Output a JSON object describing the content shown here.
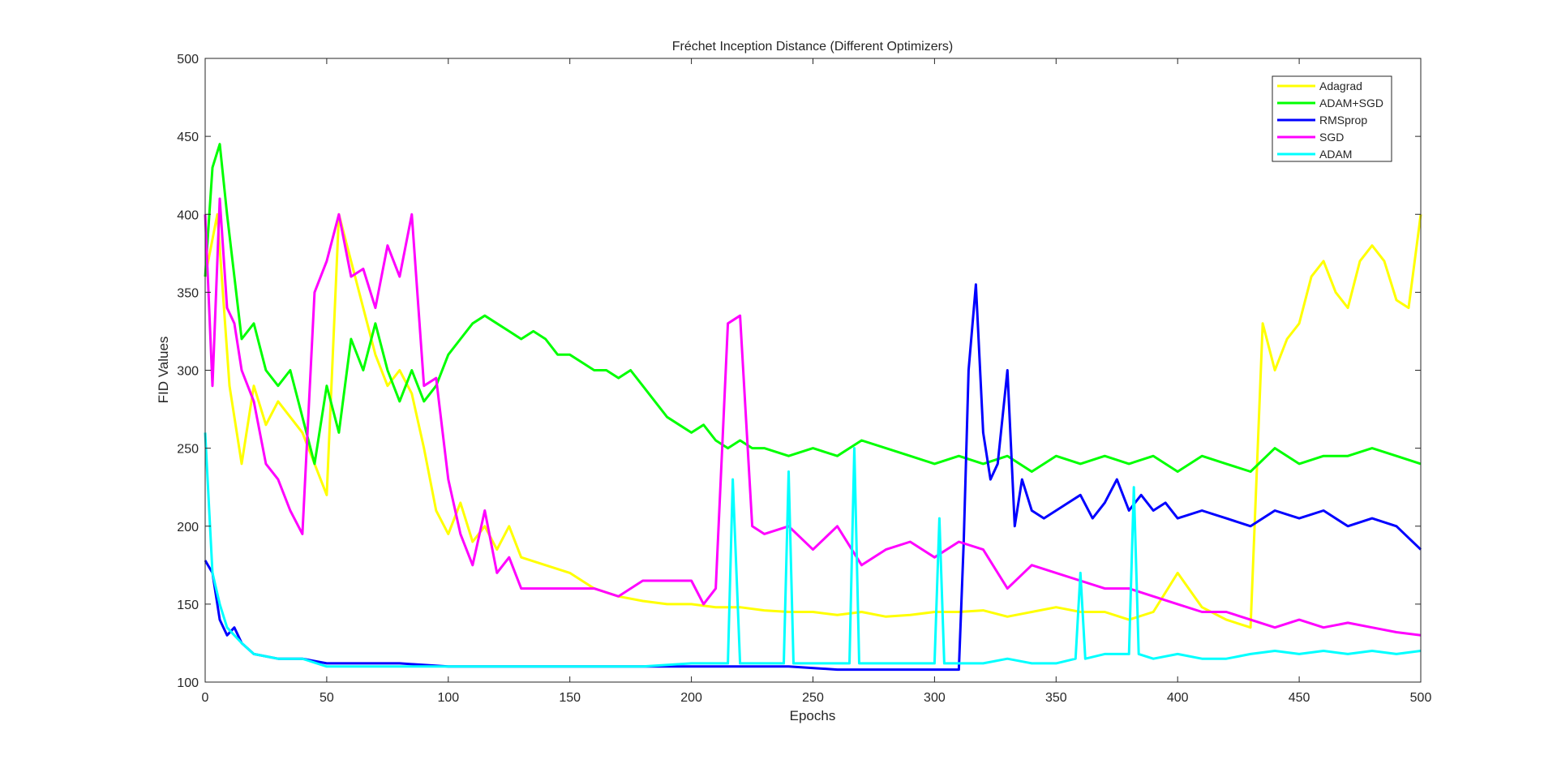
{
  "chart_data": {
    "type": "line",
    "title": "Fréchet Inception Distance (Different Optimizers)",
    "xlabel": "Epochs",
    "ylabel": "FID Values",
    "xlim": [
      0,
      500
    ],
    "ylim": [
      100,
      500
    ],
    "xticks": [
      0,
      50,
      100,
      150,
      200,
      250,
      300,
      350,
      400,
      450,
      500
    ],
    "yticks": [
      100,
      150,
      200,
      250,
      300,
      350,
      400,
      450,
      500
    ],
    "grid": false,
    "legend_position": "top-right",
    "series": [
      {
        "name": "Adagrad",
        "color": "#ffff00",
        "x": [
          0,
          5,
          10,
          15,
          20,
          25,
          30,
          35,
          40,
          45,
          50,
          55,
          60,
          65,
          70,
          75,
          80,
          85,
          90,
          95,
          100,
          105,
          110,
          115,
          120,
          125,
          130,
          140,
          150,
          160,
          170,
          180,
          190,
          200,
          210,
          220,
          230,
          240,
          250,
          260,
          270,
          280,
          290,
          300,
          310,
          320,
          330,
          340,
          350,
          360,
          370,
          380,
          390,
          400,
          410,
          420,
          430,
          435,
          440,
          445,
          450,
          455,
          460,
          465,
          470,
          475,
          480,
          485,
          490,
          495,
          500
        ],
        "y": [
          360,
          400,
          290,
          240,
          290,
          265,
          280,
          270,
          260,
          240,
          220,
          400,
          370,
          340,
          310,
          290,
          300,
          285,
          250,
          210,
          195,
          215,
          190,
          200,
          185,
          200,
          180,
          175,
          170,
          160,
          155,
          152,
          150,
          150,
          148,
          148,
          146,
          145,
          145,
          143,
          145,
          142,
          143,
          145,
          145,
          146,
          142,
          145,
          148,
          145,
          145,
          140,
          145,
          170,
          148,
          140,
          135,
          330,
          300,
          320,
          330,
          360,
          370,
          350,
          340,
          370,
          380,
          370,
          345,
          340,
          400
        ]
      },
      {
        "name": "ADAM+SGD",
        "color": "#00ff00",
        "x": [
          0,
          3,
          6,
          9,
          12,
          15,
          20,
          25,
          30,
          35,
          40,
          45,
          50,
          55,
          60,
          65,
          70,
          75,
          80,
          85,
          90,
          95,
          100,
          105,
          110,
          115,
          120,
          125,
          130,
          135,
          140,
          145,
          150,
          155,
          160,
          165,
          170,
          175,
          180,
          185,
          190,
          195,
          200,
          205,
          210,
          215,
          220,
          225,
          230,
          240,
          250,
          260,
          270,
          280,
          290,
          300,
          310,
          320,
          330,
          340,
          350,
          360,
          370,
          380,
          390,
          400,
          410,
          420,
          430,
          440,
          450,
          460,
          470,
          480,
          490,
          500
        ],
        "y": [
          360,
          430,
          445,
          400,
          360,
          320,
          330,
          300,
          290,
          300,
          270,
          240,
          290,
          260,
          320,
          300,
          330,
          300,
          280,
          300,
          280,
          290,
          310,
          320,
          330,
          335,
          330,
          325,
          320,
          325,
          320,
          310,
          310,
          305,
          300,
          300,
          295,
          300,
          290,
          280,
          270,
          265,
          260,
          265,
          255,
          250,
          255,
          250,
          250,
          245,
          250,
          245,
          255,
          250,
          245,
          240,
          245,
          240,
          245,
          235,
          245,
          240,
          245,
          240,
          245,
          235,
          245,
          240,
          235,
          250,
          240,
          245,
          245,
          250,
          245,
          240
        ]
      },
      {
        "name": "RMSprop",
        "color": "#0000ff",
        "x": [
          0,
          3,
          6,
          9,
          12,
          15,
          20,
          30,
          40,
          50,
          60,
          80,
          100,
          120,
          140,
          160,
          180,
          200,
          220,
          240,
          260,
          280,
          300,
          310,
          312,
          314,
          317,
          320,
          323,
          326,
          330,
          333,
          336,
          340,
          345,
          350,
          355,
          360,
          365,
          370,
          375,
          380,
          385,
          390,
          395,
          400,
          410,
          420,
          430,
          440,
          450,
          460,
          470,
          480,
          490,
          500
        ],
        "y": [
          178,
          170,
          140,
          130,
          135,
          125,
          118,
          115,
          115,
          112,
          112,
          112,
          110,
          110,
          110,
          110,
          110,
          110,
          110,
          110,
          108,
          108,
          108,
          108,
          190,
          300,
          355,
          260,
          230,
          240,
          300,
          200,
          230,
          210,
          205,
          210,
          215,
          220,
          205,
          215,
          230,
          210,
          220,
          210,
          215,
          205,
          210,
          205,
          200,
          210,
          205,
          210,
          200,
          205,
          200,
          185
        ]
      },
      {
        "name": "SGD",
        "color": "#ff00ff",
        "x": [
          0,
          3,
          6,
          9,
          12,
          15,
          20,
          25,
          30,
          35,
          40,
          45,
          50,
          55,
          60,
          65,
          70,
          75,
          80,
          85,
          90,
          95,
          100,
          105,
          110,
          115,
          120,
          125,
          130,
          140,
          150,
          160,
          170,
          180,
          190,
          200,
          205,
          210,
          215,
          220,
          225,
          230,
          240,
          250,
          260,
          270,
          280,
          290,
          300,
          310,
          320,
          330,
          340,
          350,
          360,
          370,
          380,
          390,
          400,
          410,
          420,
          430,
          440,
          450,
          460,
          470,
          480,
          490,
          500
        ],
        "y": [
          400,
          290,
          410,
          340,
          330,
          300,
          280,
          240,
          230,
          210,
          195,
          350,
          370,
          400,
          360,
          365,
          340,
          380,
          360,
          400,
          290,
          295,
          230,
          195,
          175,
          210,
          170,
          180,
          160,
          160,
          160,
          160,
          155,
          165,
          165,
          165,
          150,
          160,
          330,
          335,
          200,
          195,
          200,
          185,
          200,
          175,
          185,
          190,
          180,
          190,
          185,
          160,
          175,
          170,
          165,
          160,
          160,
          155,
          150,
          145,
          145,
          140,
          135,
          140,
          135,
          138,
          135,
          132,
          130
        ]
      },
      {
        "name": "ADAM",
        "color": "#00ffff",
        "x": [
          0,
          3,
          6,
          9,
          12,
          15,
          20,
          30,
          40,
          50,
          60,
          80,
          100,
          120,
          140,
          160,
          180,
          200,
          210,
          215,
          217,
          220,
          230,
          238,
          240,
          242,
          250,
          260,
          265,
          267,
          269,
          280,
          290,
          300,
          302,
          304,
          310,
          320,
          330,
          340,
          350,
          358,
          360,
          362,
          370,
          380,
          382,
          384,
          390,
          400,
          410,
          420,
          430,
          440,
          450,
          460,
          470,
          480,
          490,
          500
        ],
        "y": [
          260,
          170,
          150,
          135,
          130,
          125,
          118,
          115,
          115,
          110,
          110,
          110,
          110,
          110,
          110,
          110,
          110,
          112,
          112,
          112,
          230,
          112,
          112,
          112,
          235,
          112,
          112,
          112,
          112,
          250,
          112,
          112,
          112,
          112,
          205,
          112,
          112,
          112,
          115,
          112,
          112,
          115,
          170,
          115,
          118,
          118,
          225,
          118,
          115,
          118,
          115,
          115,
          118,
          120,
          118,
          120,
          118,
          120,
          118,
          120
        ]
      }
    ]
  }
}
